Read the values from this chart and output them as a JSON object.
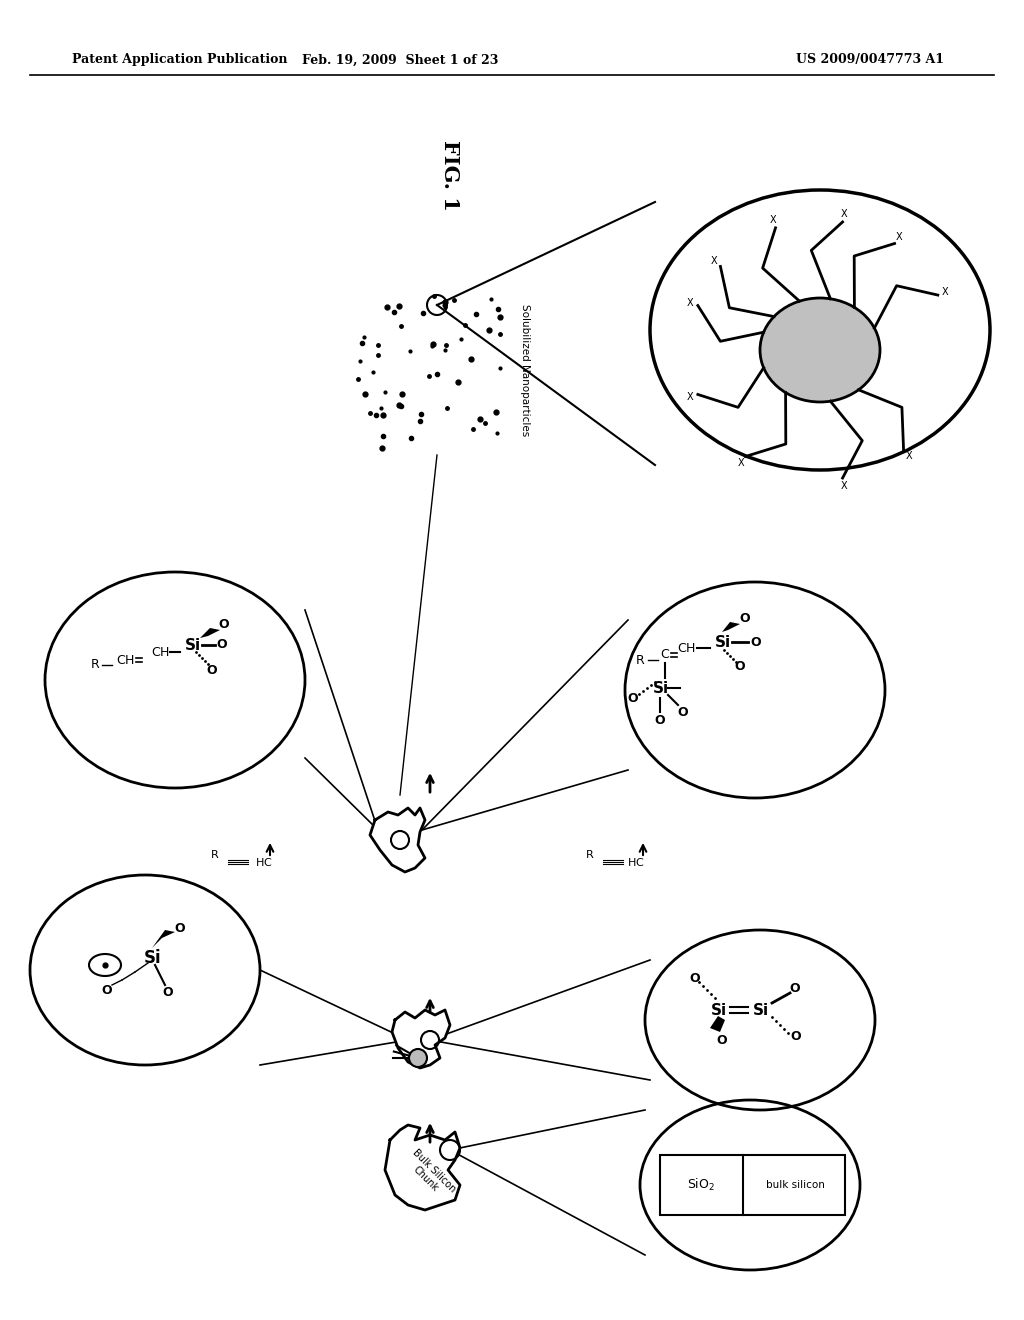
{
  "header_left": "Patent Application Publication",
  "header_center": "Feb. 19, 2009  Sheet 1 of 23",
  "header_right": "US 2009/0047773 A1",
  "title": "FIG. 1",
  "bg": "#ffffff"
}
